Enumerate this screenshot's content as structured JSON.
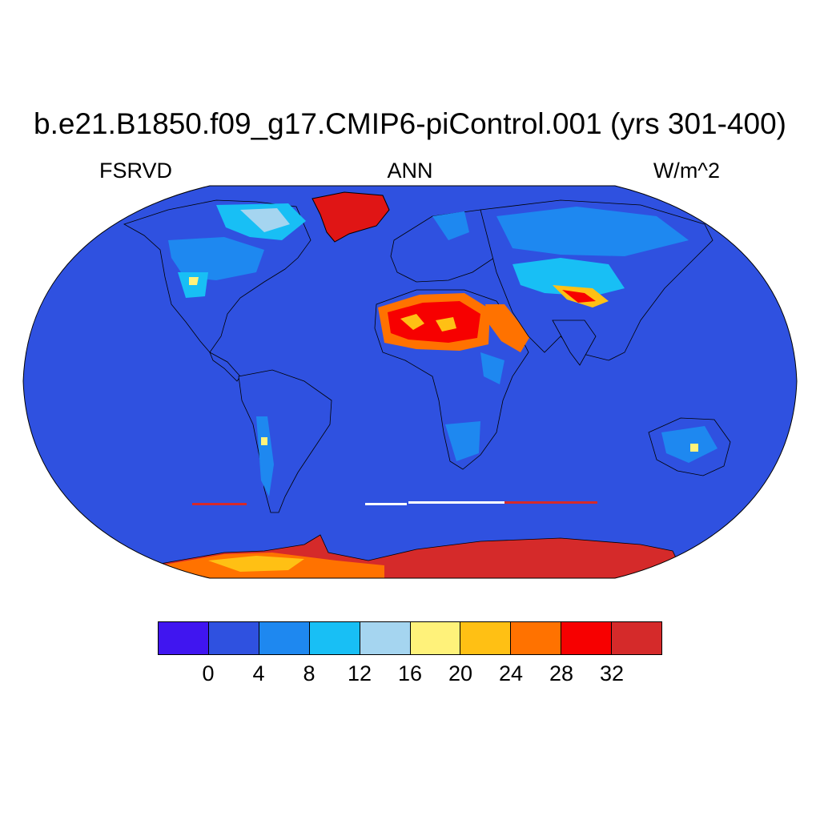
{
  "header": {
    "title": "b.e21.B1850.f09_g17.CMIP6-piControl.001 (yrs 301-400)",
    "left_label": "FSRVD",
    "center_label": "ANN",
    "right_label": "W/m^2"
  },
  "map": {
    "projection": "robinson",
    "ocean_color": "#2F51E0",
    "coastline_color": "#000000"
  },
  "colorbar": {
    "colors": [
      "#4015F0",
      "#2F51E0",
      "#1E88F0",
      "#18BFF5",
      "#A5D5F0",
      "#FFF27A",
      "#FFC014",
      "#FF7200",
      "#F70000",
      "#D52A2A"
    ],
    "ticks": [
      "0",
      "4",
      "8",
      "12",
      "16",
      "20",
      "24",
      "28",
      "32"
    ]
  }
}
